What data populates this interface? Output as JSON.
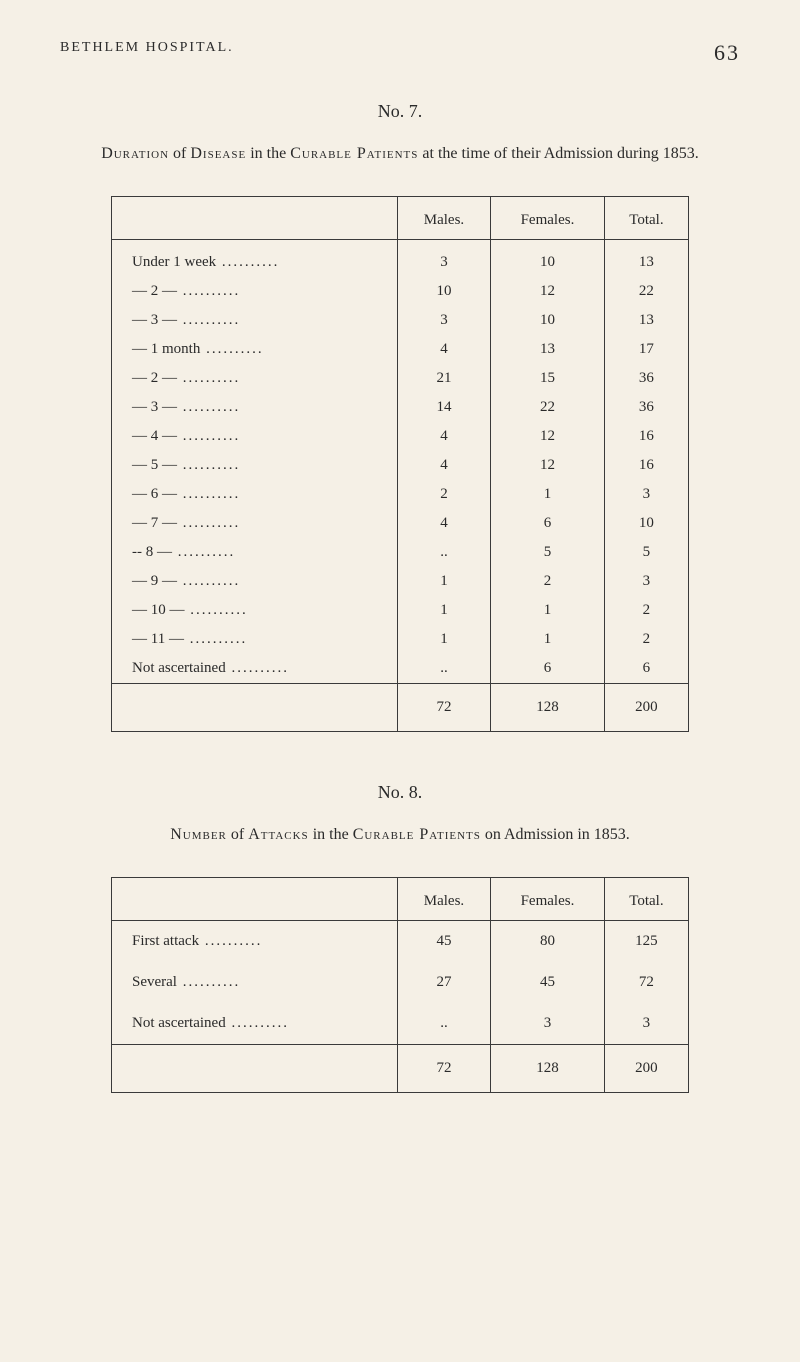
{
  "header": {
    "title": "BETHLEM HOSPITAL.",
    "page_number": "63"
  },
  "section7": {
    "number": "No. 7.",
    "description_pre": "Duration",
    "description_mid1": " of ",
    "description_smallcaps1": "Disease",
    "description_mid2": " in the ",
    "description_smallcaps2": "Curable Patients",
    "description_post": " at the time of their Admission during 1853.",
    "columns": {
      "males": "Males.",
      "females": "Females.",
      "total": "Total."
    },
    "rows": [
      {
        "label": "Under 1 week",
        "males": "3",
        "females": "10",
        "total": "13"
      },
      {
        "label": "— 2 —",
        "males": "10",
        "females": "12",
        "total": "22"
      },
      {
        "label": "— 3 —",
        "males": "3",
        "females": "10",
        "total": "13"
      },
      {
        "label": "— 1 month",
        "males": "4",
        "females": "13",
        "total": "17"
      },
      {
        "label": "— 2 —",
        "males": "21",
        "females": "15",
        "total": "36"
      },
      {
        "label": "— 3 —",
        "males": "14",
        "females": "22",
        "total": "36"
      },
      {
        "label": "— 4 —",
        "males": "4",
        "females": "12",
        "total": "16"
      },
      {
        "label": "— 5 —",
        "males": "4",
        "females": "12",
        "total": "16"
      },
      {
        "label": "— 6 —",
        "males": "2",
        "females": "1",
        "total": "3"
      },
      {
        "label": "— 7 —",
        "males": "4",
        "females": "6",
        "total": "10"
      },
      {
        "label": "-- 8 —",
        "males": "..",
        "females": "5",
        "total": "5"
      },
      {
        "label": "— 9 —",
        "males": "1",
        "females": "2",
        "total": "3"
      },
      {
        "label": "— 10 —",
        "males": "1",
        "females": "1",
        "total": "2"
      },
      {
        "label": "— 11 —",
        "males": "1",
        "females": "1",
        "total": "2"
      },
      {
        "label": "Not ascertained",
        "males": "..",
        "females": "6",
        "total": "6"
      }
    ],
    "totals": {
      "males": "72",
      "females": "128",
      "total": "200"
    }
  },
  "section8": {
    "number": "No. 8.",
    "description_pre": "Number",
    "description_mid1": " of ",
    "description_smallcaps1": "Attacks",
    "description_mid2": " in the ",
    "description_smallcaps2": "Curable Patients",
    "description_post": " on Admission in 1853.",
    "columns": {
      "males": "Males.",
      "females": "Females.",
      "total": "Total."
    },
    "rows": [
      {
        "label": "First attack",
        "males": "45",
        "females": "80",
        "total": "125"
      },
      {
        "label": "Several",
        "males": "27",
        "females": "45",
        "total": "72"
      },
      {
        "label": "Not ascertained",
        "males": "..",
        "females": "3",
        "total": "3"
      }
    ],
    "totals": {
      "males": "72",
      "females": "128",
      "total": "200"
    }
  }
}
